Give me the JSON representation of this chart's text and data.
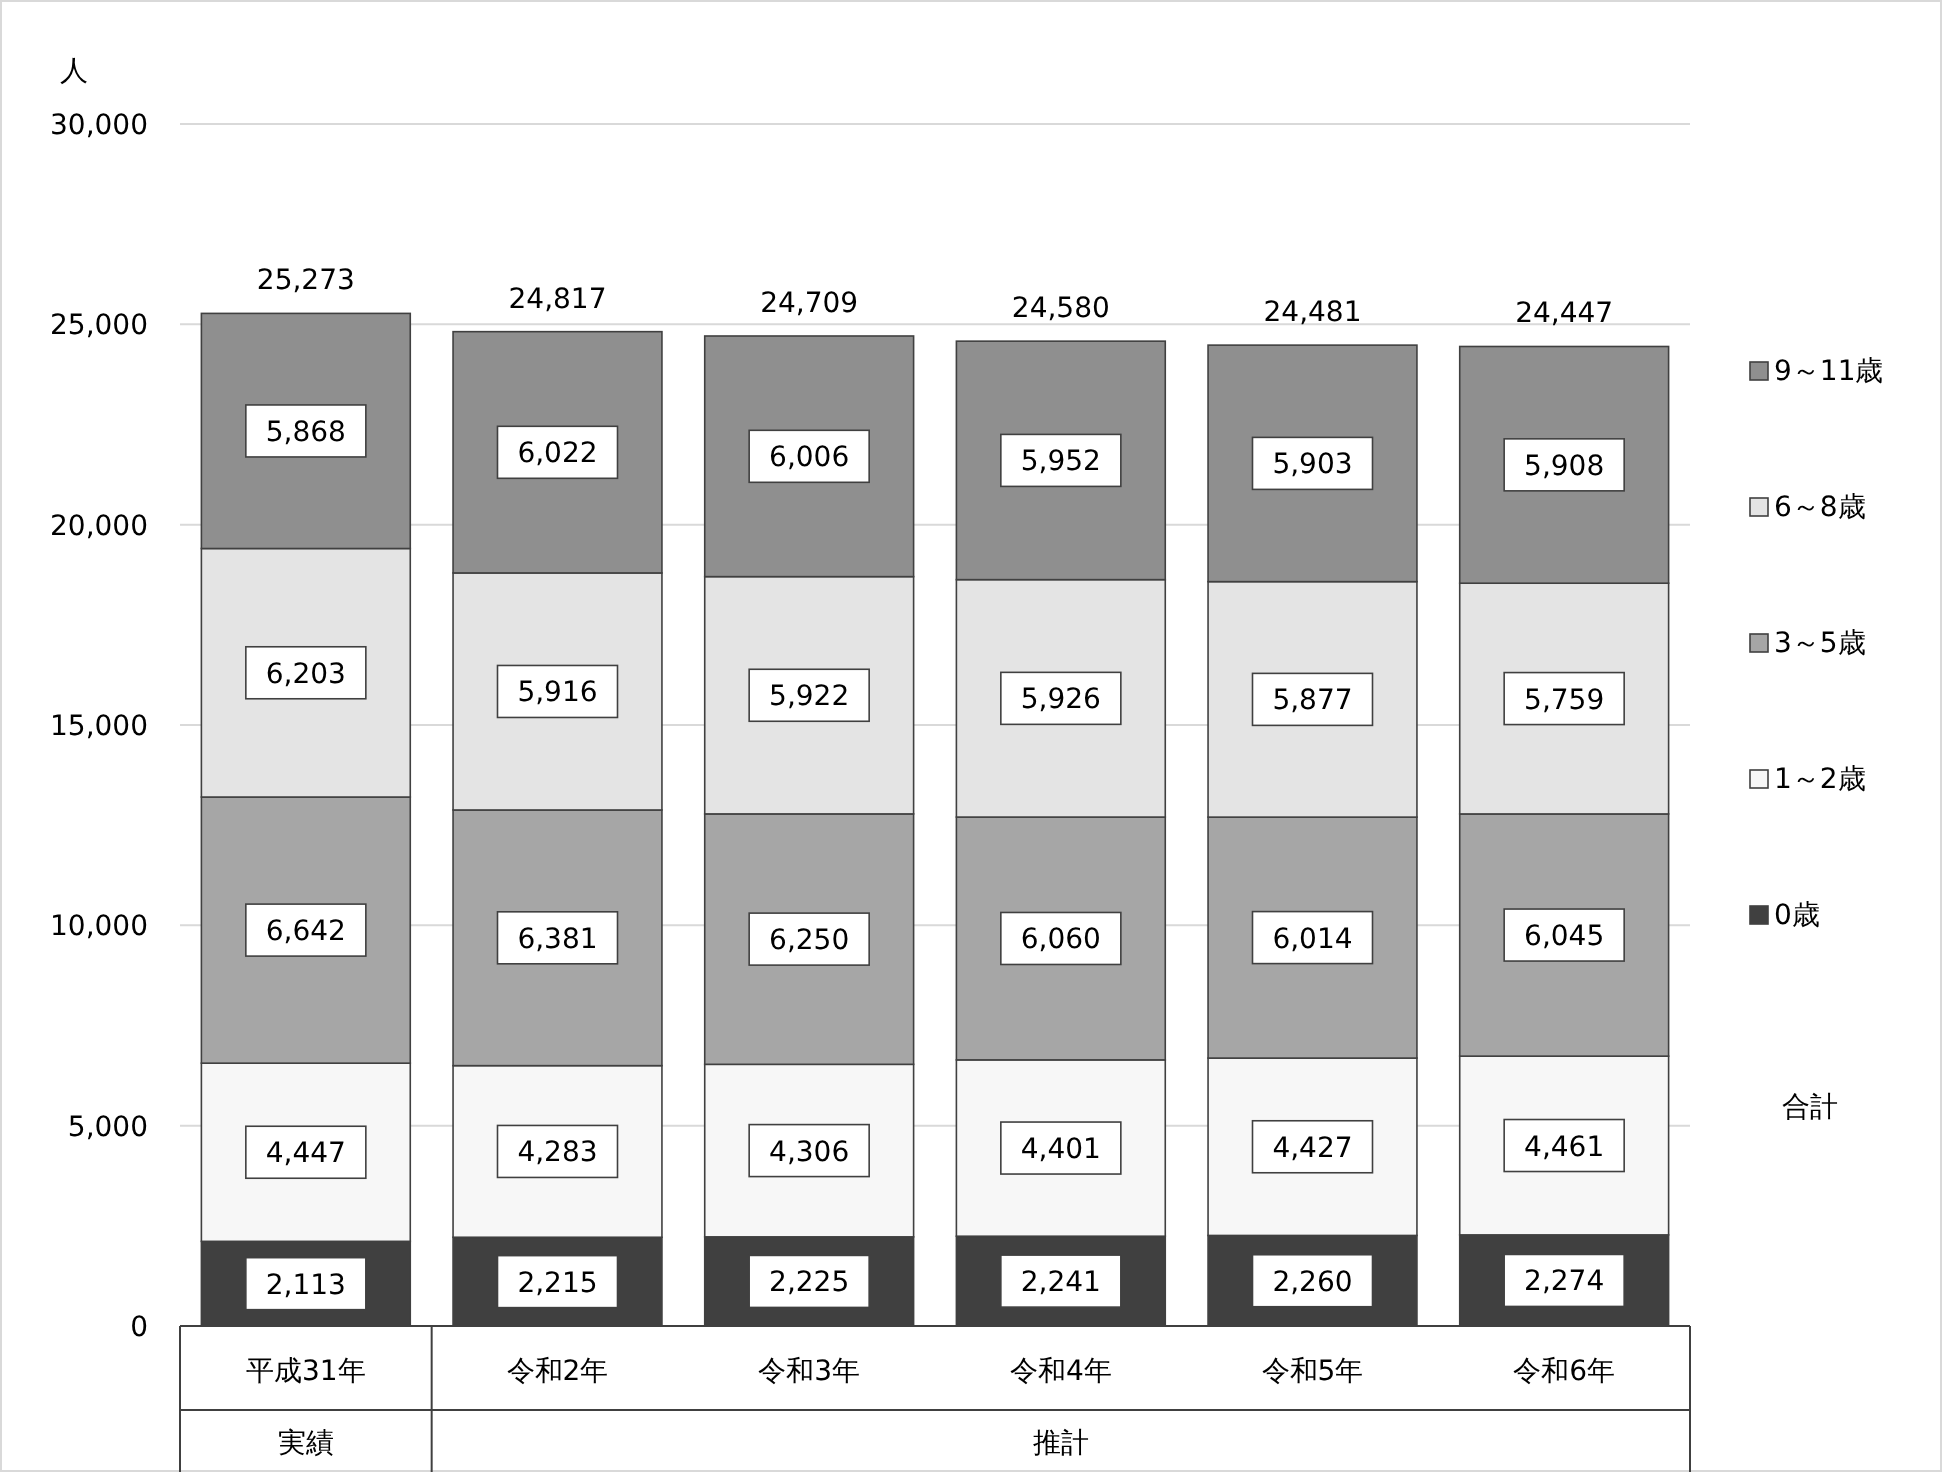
{
  "chart_data": {
    "type": "bar",
    "stacked": true,
    "ylabel": "人",
    "categories": [
      "平成31年",
      "令和2年",
      "令和3年",
      "令和4年",
      "令和5年",
      "令和6年"
    ],
    "series": [
      {
        "name": "0歳",
        "color": "#404040",
        "values": [
          2113,
          2215,
          2225,
          2241,
          2260,
          2274
        ],
        "value_labels": [
          "2,113",
          "2,215",
          "2,225",
          "2,241",
          "2,260",
          "2,274"
        ]
      },
      {
        "name": "1～2歳",
        "color": "#f7f7f7",
        "values": [
          4447,
          4283,
          4306,
          4401,
          4427,
          4461
        ],
        "value_labels": [
          "4,447",
          "4,283",
          "4,306",
          "4,401",
          "4,427",
          "4,461"
        ]
      },
      {
        "name": "3～5歳",
        "color": "#a6a6a6",
        "values": [
          6642,
          6381,
          6250,
          6060,
          6014,
          6045
        ],
        "value_labels": [
          "6,642",
          "6,381",
          "6,250",
          "6,060",
          "6,014",
          "6,045"
        ]
      },
      {
        "name": "6～8歳",
        "color": "#e4e4e4",
        "values": [
          6203,
          5916,
          5922,
          5926,
          5877,
          5759
        ],
        "value_labels": [
          "6,203",
          "5,916",
          "5,922",
          "5,926",
          "5,877",
          "5,759"
        ]
      },
      {
        "name": "9～11歳",
        "color": "#8f8f8f",
        "values": [
          5868,
          6022,
          6006,
          5952,
          5903,
          5908
        ],
        "value_labels": [
          "5,868",
          "6,022",
          "6,006",
          "5,952",
          "5,903",
          "5,908"
        ]
      }
    ],
    "totals": [
      "25,273",
      "24,817",
      "24,709",
      "24,580",
      "24,481",
      "24,447"
    ],
    "ylim": [
      0,
      30000
    ],
    "yticks": [
      0,
      {
        "value": 5000,
        "label": "5,000"
      },
      {
        "value": 10000,
        "label": "10,000"
      },
      {
        "value": 15000,
        "label": "15,000"
      },
      {
        "value": 20000,
        "label": "20,000"
      },
      {
        "value": 25000,
        "label": "25,000"
      },
      {
        "value": 30000,
        "label": "30,000"
      }
    ],
    "grid": "y",
    "legend": "right",
    "annotations": [
      "実績",
      "推計",
      "合計"
    ]
  }
}
